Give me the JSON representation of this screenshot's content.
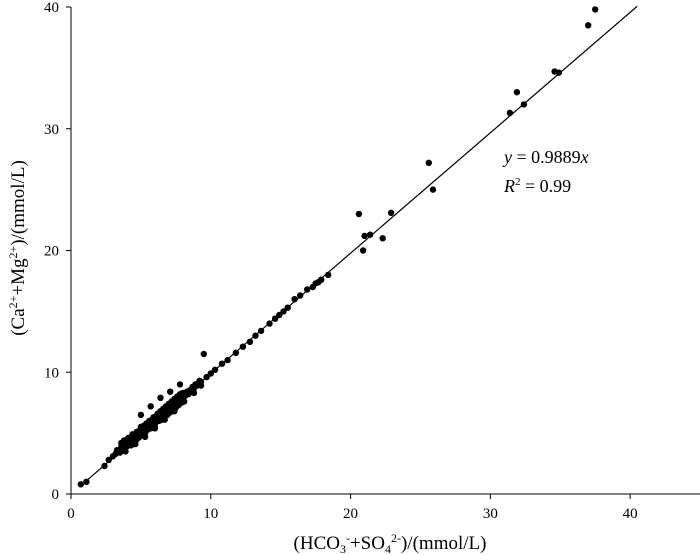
{
  "chart_data": {
    "type": "scatter",
    "xlabel": "(HCO3- +SO42- )/(mmol/L)",
    "ylabel": "(Ca2+ +Mg2+)/(mmol/L)",
    "xlim": [
      0,
      45
    ],
    "ylim": [
      0,
      40
    ],
    "x_ticks": [
      "0",
      "10",
      "20",
      "30",
      "40"
    ],
    "y_ticks": [
      "0",
      "10",
      "20",
      "30",
      "40"
    ],
    "grid": false,
    "legend": "none",
    "trendline": {
      "slope": 0.9889,
      "intercept": 0,
      "x_range": [
        0.7,
        40.5
      ]
    },
    "annotation": {
      "equation": "y = 0.9889x",
      "r_squared": "R2 = 0.99"
    },
    "x": [
      0.7,
      1.1,
      2.4,
      2.7,
      3.0,
      3.2,
      3.3,
      3.5,
      3.6,
      3.6,
      3.7,
      3.8,
      3.8,
      3.9,
      4.0,
      4.0,
      4.1,
      4.1,
      4.2,
      4.2,
      4.3,
      4.3,
      4.4,
      4.4,
      4.5,
      4.5,
      4.6,
      4.6,
      4.7,
      4.7,
      4.8,
      4.8,
      4.9,
      4.9,
      5.0,
      5.0,
      5.1,
      5.1,
      5.2,
      5.2,
      5.3,
      5.3,
      5.4,
      5.4,
      5.5,
      5.5,
      5.6,
      5.6,
      5.7,
      5.7,
      5.8,
      5.8,
      5.9,
      5.9,
      6.0,
      6.0,
      6.1,
      6.1,
      6.2,
      6.2,
      6.3,
      6.3,
      6.4,
      6.4,
      6.5,
      6.5,
      6.6,
      6.6,
      6.7,
      6.7,
      6.8,
      6.8,
      6.9,
      6.9,
      7.0,
      7.0,
      7.1,
      7.1,
      7.2,
      7.2,
      7.3,
      7.3,
      7.4,
      7.4,
      7.5,
      7.5,
      7.6,
      7.6,
      7.7,
      7.7,
      7.8,
      7.8,
      7.9,
      7.9,
      8.0,
      8.0,
      8.1,
      8.2,
      8.3,
      8.4,
      8.5,
      8.6,
      8.7,
      8.8,
      8.9,
      9.0,
      9.1,
      9.2,
      9.3,
      9.5,
      9.7,
      10.0,
      10.3,
      10.8,
      11.2,
      11.8,
      12.3,
      12.8,
      13.2,
      13.6,
      14.2,
      14.6,
      14.9,
      15.2,
      15.5,
      16.0,
      16.4,
      16.9,
      17.3,
      17.5,
      17.7,
      17.9,
      18.4,
      20.6,
      20.9,
      21.0,
      21.4,
      22.3,
      22.9,
      25.6,
      25.9,
      31.4,
      31.9,
      32.4,
      34.6,
      34.9,
      37.0,
      37.5,
      3.9,
      4.6,
      5.3,
      6.0,
      6.7,
      7.4,
      8.1,
      8.8,
      9.3,
      5.0,
      5.7,
      6.4,
      7.1,
      7.8,
      4.3,
      4.9
    ],
    "y": [
      0.8,
      1.0,
      2.3,
      2.8,
      3.1,
      3.3,
      3.6,
      3.4,
      3.9,
      4.2,
      3.7,
      3.8,
      4.4,
      4.0,
      3.9,
      4.3,
      4.2,
      4.6,
      4.1,
      4.4,
      4.5,
      4.0,
      4.3,
      4.9,
      4.4,
      4.8,
      4.6,
      4.3,
      4.5,
      5.1,
      4.8,
      4.6,
      4.7,
      5.2,
      4.9,
      5.5,
      5.0,
      5.3,
      5.1,
      5.6,
      5.2,
      5.0,
      5.4,
      5.8,
      5.3,
      5.7,
      5.5,
      6.0,
      5.6,
      5.4,
      5.7,
      6.1,
      5.8,
      6.3,
      6.0,
      5.7,
      6.0,
      6.4,
      6.1,
      6.6,
      6.2,
      6.0,
      6.3,
      6.8,
      6.4,
      6.1,
      6.5,
      7.0,
      6.6,
      6.4,
      6.7,
      7.2,
      6.8,
      6.5,
      6.9,
      7.4,
      7.0,
      6.7,
      7.1,
      7.6,
      7.2,
      6.9,
      7.3,
      7.8,
      7.4,
      7.1,
      7.5,
      8.0,
      7.6,
      7.3,
      7.7,
      8.2,
      7.8,
      7.5,
      7.9,
      8.3,
      8.0,
      8.1,
      8.4,
      8.2,
      8.5,
      8.6,
      8.8,
      8.7,
      9.0,
      8.9,
      9.1,
      9.3,
      9.2,
      11.5,
      9.6,
      9.9,
      10.2,
      10.7,
      11.0,
      11.6,
      12.1,
      12.5,
      13.0,
      13.4,
      14.0,
      14.4,
      14.7,
      15.0,
      15.3,
      16.0,
      16.3,
      16.8,
      17.0,
      17.3,
      17.4,
      17.6,
      18.0,
      23.0,
      20.0,
      21.2,
      21.3,
      21.0,
      23.1,
      27.2,
      25.0,
      31.3,
      33.0,
      32.0,
      34.7,
      34.6,
      38.5,
      39.8,
      3.5,
      4.1,
      4.7,
      5.4,
      6.1,
      6.8,
      7.6,
      8.3,
      8.9,
      6.5,
      7.2,
      7.9,
      8.4,
      9.0,
      4.6,
      5.2
    ]
  }
}
